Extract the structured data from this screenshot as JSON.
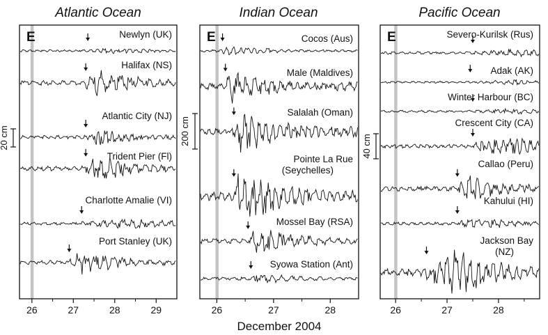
{
  "chart_data": {
    "type": "line",
    "xlabel": "December 2004",
    "panels": [
      {
        "title": "Atlantic Ocean",
        "label": "E",
        "xlim": [
          25.7,
          29.5
        ],
        "xticks": [
          "26",
          "27",
          "28",
          "29"
        ],
        "scale_bar": "20 cm",
        "stations": [
          {
            "name": "Newlyn (UK)",
            "arrival": 27.35,
            "amp": 5,
            "peak": 28.0
          },
          {
            "name": "Halifax (NS)",
            "arrival": 27.3,
            "amp": 22,
            "peak": 27.5
          },
          {
            "name": "Atlantic City (NJ)",
            "arrival": 27.3,
            "amp": 13,
            "peak": 27.6
          },
          {
            "name": "Trident Pier (Fl)",
            "arrival": 27.3,
            "amp": 22,
            "peak": 27.5
          },
          {
            "name": "Charlotte Amalie  (VI)",
            "arrival": 27.2,
            "amp": 9,
            "peak": 28.5
          },
          {
            "name": "Port Stanley  (UK)",
            "arrival": 26.9,
            "amp": 18,
            "peak": 27.2
          }
        ]
      },
      {
        "title": "Indian Ocean",
        "label": "E",
        "xlim": [
          25.7,
          28.5
        ],
        "xticks": [
          "26",
          "27",
          "28"
        ],
        "scale_bar": "200 cm",
        "stations": [
          {
            "name": "Cocos (Aus)",
            "arrival": 26.1,
            "amp": 8,
            "peak": 26.15
          },
          {
            "name": "Male (Maldives)",
            "arrival": 26.15,
            "amp": 30,
            "peak": 26.2
          },
          {
            "name": "Salalah (Oman)",
            "arrival": 26.3,
            "amp": 34,
            "peak": 26.4
          },
          {
            "name": "Pointe La Rue\n(Seychelles)",
            "arrival": 26.3,
            "amp": 42,
            "peak": 26.4
          },
          {
            "name": "Mossel Bay (RSA)",
            "arrival": 26.55,
            "amp": 22,
            "peak": 26.7
          },
          {
            "name": "Syowa Station (Ant)",
            "arrival": 26.6,
            "amp": 9,
            "peak": 26.7
          }
        ]
      },
      {
        "title": "Pacific Ocean",
        "label": "E",
        "xlim": [
          25.7,
          28.8
        ],
        "xticks": [
          "26",
          "27",
          "28"
        ],
        "scale_bar": "40 cm",
        "stations": [
          {
            "name": "Severo-Kurilsk  (Rus)",
            "arrival": 27.5,
            "amp": 7,
            "peak": 28.4
          },
          {
            "name": "Adak  (AK)",
            "arrival": 27.45,
            "amp": 4,
            "peak": 28.3
          },
          {
            "name": "Winter Harbour (BC)",
            "arrival": 27.5,
            "amp": 5,
            "peak": 28.2
          },
          {
            "name": "Crescent City (CA)",
            "arrival": 27.5,
            "amp": 16,
            "peak": 28.3
          },
          {
            "name": "Callao (Peru)",
            "arrival": 27.2,
            "amp": 22,
            "peak": 27.4
          },
          {
            "name": "Kahului (HI)",
            "arrival": 27.2,
            "amp": 10,
            "peak": 27.5
          },
          {
            "name": "Jackson Bay\n(NZ)",
            "arrival": 26.6,
            "amp": 38,
            "peak": 27.2
          }
        ]
      }
    ]
  }
}
